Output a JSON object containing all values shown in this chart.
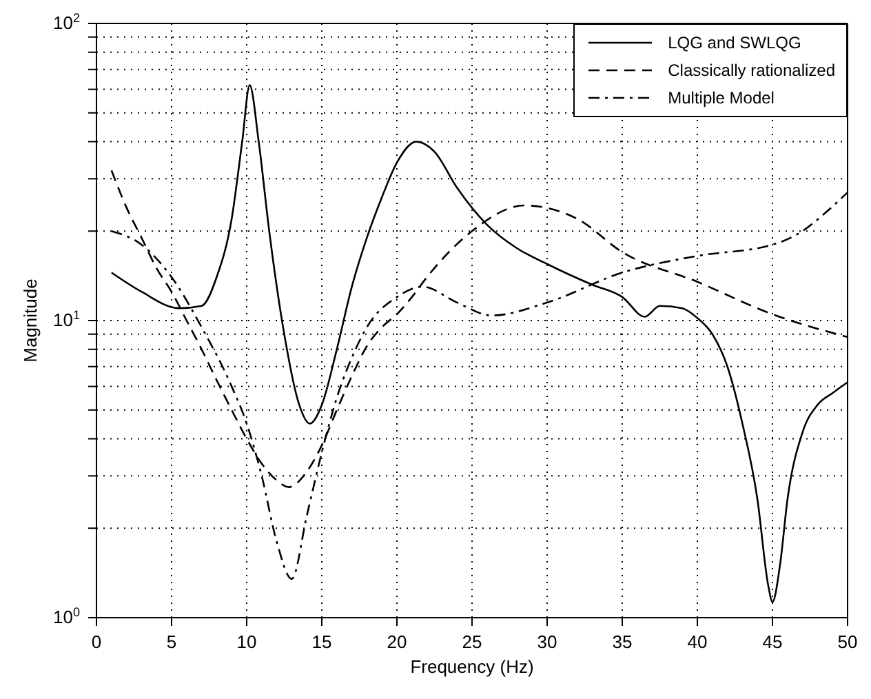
{
  "chart_data": {
    "type": "line",
    "xlabel": "Frequency (Hz)",
    "ylabel": "Magnitude",
    "log": "y",
    "grid": true,
    "legend": "top right",
    "marker": "none",
    "xlim": [
      0,
      50
    ],
    "xticks": [
      0,
      5,
      10,
      15,
      20,
      25,
      30,
      35,
      40,
      45,
      50
    ],
    "ylim": [
      1,
      100
    ],
    "yticks": [
      {
        "value": 1,
        "label": "10$^{0}$"
      },
      {
        "value": 2,
        "label": null
      },
      {
        "value": 3,
        "label": null
      },
      {
        "value": 4,
        "label": null
      },
      {
        "value": 5,
        "label": null
      },
      {
        "value": 6,
        "label": null
      },
      {
        "value": 7,
        "label": null
      },
      {
        "value": 8,
        "label": null
      },
      {
        "value": 9,
        "label": null
      },
      {
        "value": 10,
        "label": "10$^{1}$"
      },
      {
        "value": 20,
        "label": null
      },
      {
        "value": 30,
        "label": null
      },
      {
        "value": 40,
        "label": null
      },
      {
        "value": 50,
        "label": null
      },
      {
        "value": 60,
        "label": null
      },
      {
        "value": 70,
        "label": null
      },
      {
        "value": 80,
        "label": null
      },
      {
        "value": 90,
        "label": null
      },
      {
        "value": 100,
        "label": "10$^{2}$"
      }
    ],
    "series": [
      {
        "name": "LQG and SWLQG",
        "color": "#000000",
        "line_style": "solid",
        "x": [
          1,
          3,
          5.5,
          7,
          8,
          9,
          9.7,
          10.2,
          10.8,
          11.5,
          12.5,
          13.5,
          14.2,
          15,
          16,
          17,
          18,
          19,
          20,
          21.3,
          22.5,
          24,
          26,
          28,
          30,
          33,
          35,
          36.5,
          37.5,
          39,
          40,
          41,
          42,
          43,
          44,
          44.7,
          45,
          45.5,
          46,
          47,
          48,
          49,
          50
        ],
        "values": [
          14.5,
          12.5,
          11,
          11.2,
          14,
          22,
          40,
          62,
          40,
          20,
          9,
          5.2,
          4.5,
          5.2,
          8,
          13,
          19,
          26,
          34,
          40,
          37,
          28,
          21,
          17.5,
          15.5,
          13.2,
          12,
          10.3,
          11.2,
          11,
          10.2,
          9,
          7,
          4.5,
          2.5,
          1.3,
          1.13,
          1.5,
          2.5,
          4.2,
          5.2,
          5.7,
          6.2
        ]
      },
      {
        "name": "Classically rationalized",
        "color": "#000000",
        "line_style": "dashed",
        "x": [
          1,
          2,
          3,
          4,
          5,
          6,
          7,
          8,
          9,
          10,
          11,
          12,
          12.8,
          14,
          15,
          16,
          17,
          18,
          19,
          20,
          21,
          22,
          25,
          28.5,
          32,
          35,
          40,
          45,
          50
        ],
        "values": [
          32,
          24,
          19,
          15,
          12.5,
          10,
          8,
          6.3,
          5,
          4,
          3.3,
          2.9,
          2.75,
          3.1,
          3.8,
          5,
          6.5,
          8.2,
          9.5,
          10.5,
          12,
          14,
          20,
          24.4,
          22,
          17,
          13.5,
          10.5,
          8.8
        ]
      },
      {
        "name": "Multiple Model",
        "color": "#000000",
        "line_style": "dashdot",
        "x": [
          1,
          3,
          5,
          7,
          9,
          10,
          11,
          12,
          13,
          14,
          15,
          16,
          17,
          18,
          20,
          21.7,
          24,
          26.3,
          30,
          35,
          40,
          45,
          47,
          48.5,
          50
        ],
        "values": [
          20,
          18,
          14,
          9.5,
          6,
          4.5,
          3,
          1.8,
          1.35,
          2.2,
          3.6,
          5.5,
          7.5,
          9.5,
          12,
          13,
          11.5,
          10.4,
          11.5,
          14.5,
          16.5,
          18,
          20,
          23,
          27
        ]
      }
    ]
  }
}
